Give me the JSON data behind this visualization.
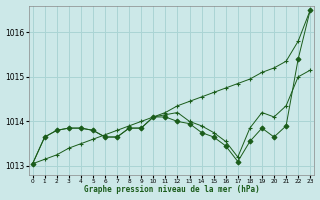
{
  "xlabel": "Graphe pression niveau de la mer (hPa)",
  "background_color": "#cce8e8",
  "grid_color": "#aad4d4",
  "line_color": "#1a5c1a",
  "ylim": [
    1012.8,
    1016.6
  ],
  "xlim": [
    -0.3,
    23.3
  ],
  "yticks": [
    1013,
    1014,
    1015,
    1016
  ],
  "xticks": [
    0,
    1,
    2,
    3,
    4,
    5,
    6,
    7,
    8,
    9,
    10,
    11,
    12,
    13,
    14,
    15,
    16,
    17,
    18,
    19,
    20,
    21,
    22,
    23
  ],
  "series": [
    {
      "x": [
        0,
        1,
        2,
        3,
        4,
        5,
        6,
        7,
        8,
        9,
        10,
        11,
        12,
        13,
        14,
        15,
        16,
        17,
        18,
        19,
        20,
        21,
        22,
        23
      ],
      "y": [
        1013.05,
        1013.15,
        1013.25,
        1013.4,
        1013.5,
        1013.6,
        1013.7,
        1013.8,
        1013.9,
        1014.0,
        1014.1,
        1014.2,
        1014.35,
        1014.45,
        1014.55,
        1014.65,
        1014.75,
        1014.85,
        1014.95,
        1015.1,
        1015.2,
        1015.35,
        1015.8,
        1016.5
      ],
      "marker": "+"
    },
    {
      "x": [
        0,
        1,
        2,
        3,
        4,
        5,
        6,
        7,
        8,
        9,
        10,
        11,
        12,
        13,
        14,
        15,
        16,
        17,
        18,
        19,
        20,
        21,
        22,
        23
      ],
      "y": [
        1013.05,
        1013.65,
        1013.8,
        1013.85,
        1013.85,
        1013.8,
        1013.65,
        1013.65,
        1013.85,
        1013.85,
        1014.1,
        1014.15,
        1014.2,
        1014.0,
        1013.9,
        1013.75,
        1013.55,
        1013.2,
        1013.85,
        1014.2,
        1014.1,
        1014.35,
        1015.0,
        1015.15
      ],
      "marker": "+"
    },
    {
      "x": [
        0,
        1,
        2,
        3,
        4,
        5,
        6,
        7,
        8,
        9,
        10,
        11,
        12,
        13,
        14,
        15,
        16,
        17,
        18,
        19,
        20,
        21,
        22,
        23
      ],
      "y": [
        1013.05,
        1013.65,
        1013.8,
        1013.85,
        1013.85,
        1013.8,
        1013.65,
        1013.65,
        1013.85,
        1013.85,
        1014.1,
        1014.1,
        1014.0,
        1013.95,
        1013.75,
        1013.65,
        1013.45,
        1013.1,
        1013.55,
        1013.85,
        1013.65,
        1013.9,
        1015.4,
        1016.5
      ],
      "marker": "D"
    }
  ]
}
